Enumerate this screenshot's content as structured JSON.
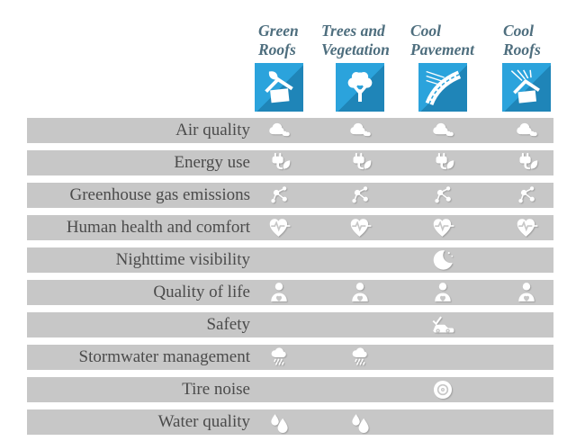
{
  "matrix": {
    "columns": [
      {
        "label": "Green Roofs",
        "label_lines": [
          "Green",
          "Roofs"
        ],
        "icon": "green-roof-house-icon"
      },
      {
        "label": "Trees and Vegetation",
        "label_lines": [
          "Trees and",
          "Vegetation"
        ],
        "icon": "tree-icon"
      },
      {
        "label": "Cool Pavement",
        "label_lines": [
          "Cool",
          "Pavement"
        ],
        "icon": "cool-pavement-road-icon"
      },
      {
        "label": "Cool Roofs",
        "label_lines": [
          "Cool",
          "Roofs"
        ],
        "icon": "cool-roof-house-icon"
      }
    ],
    "rows": [
      {
        "label": "Air quality",
        "icon": "clouds-icon",
        "applies": [
          true,
          true,
          true,
          true
        ]
      },
      {
        "label": "Energy use",
        "icon": "plug-leaf-icon",
        "applies": [
          true,
          true,
          true,
          true
        ]
      },
      {
        "label": "Greenhouse gas emissions",
        "icon": "molecule-icon",
        "applies": [
          true,
          true,
          true,
          true
        ]
      },
      {
        "label": "Human health and comfort",
        "icon": "heart-pulse-icon",
        "applies": [
          true,
          true,
          true,
          true
        ]
      },
      {
        "label": "Nighttime visibility",
        "icon": "moon-stars-icon",
        "applies": [
          false,
          false,
          true,
          false
        ]
      },
      {
        "label": "Quality of life",
        "icon": "person-icon",
        "applies": [
          true,
          true,
          true,
          true
        ]
      },
      {
        "label": "Safety",
        "icon": "car-check-icon",
        "applies": [
          false,
          false,
          true,
          false
        ]
      },
      {
        "label": "Stormwater management",
        "icon": "rain-cloud-icon",
        "applies": [
          true,
          true,
          false,
          false
        ]
      },
      {
        "label": "Tire noise",
        "icon": "tire-icon",
        "applies": [
          false,
          false,
          true,
          false
        ]
      },
      {
        "label": "Water quality",
        "icon": "water-drops-icon",
        "applies": [
          true,
          true,
          false,
          false
        ]
      }
    ]
  },
  "colors": {
    "tile_blue": "#2ba3dc",
    "tile_blue_shadow": "#1f85b8",
    "row_bar": "#c7c7c7",
    "row_label_text": "#4b4b4b",
    "column_header_text": "#4e6e7e",
    "icon_white": "#ffffff",
    "background": "#ffffff"
  }
}
